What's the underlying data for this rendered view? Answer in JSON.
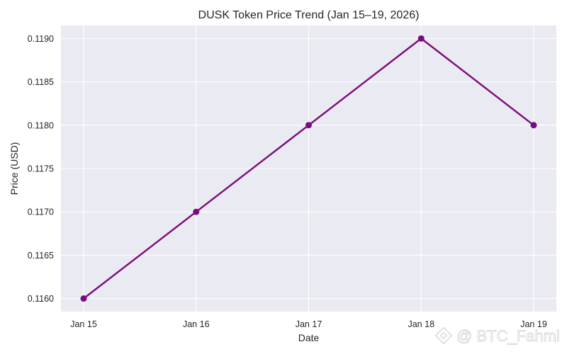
{
  "chart_data": {
    "type": "line",
    "title": "DUSK Token Price Trend (Jan 15–19, 2026)",
    "xlabel": "Date",
    "ylabel": "Price (USD)",
    "categories": [
      "Jan 15",
      "Jan 16",
      "Jan 17",
      "Jan 18",
      "Jan 19"
    ],
    "series": [
      {
        "values": [
          0.116,
          0.117,
          0.118,
          0.119,
          0.118
        ],
        "color": "#7b0c7b"
      }
    ],
    "yticks": [
      "0.1160",
      "0.1165",
      "0.1170",
      "0.1175",
      "0.1180",
      "0.1185",
      "0.1190"
    ],
    "ylim": [
      0.11585,
      0.11915
    ],
    "grid": true,
    "background_color": "#eaeaf2"
  },
  "watermark": {
    "text": "@ BTC_Fahmi",
    "icon": "binance-logo-icon"
  }
}
